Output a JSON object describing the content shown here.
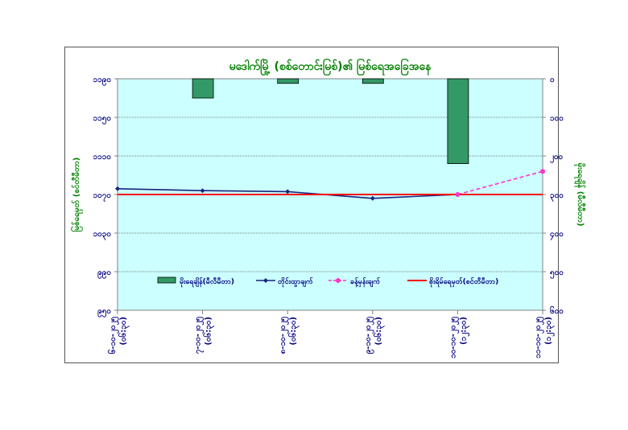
{
  "chart_data": {
    "type": "bar",
    "title": "မဒေါက်မြို့ (စစ်တောင်းမြစ်)၏ မြစ်ရေအခြေအနေ",
    "ylabel_left": "မြစ်ရေမှတ် (စင်တီမီတာ)",
    "ylabel_right": "မိုးရေချိန် (မီလီမီတာ)",
    "left_ticks": [
      "၁၁၉၀",
      "၁၁၅၀",
      "၁၁၁၀",
      "၁၀၇၀",
      "၁၀၃၀",
      "၉၉၀",
      "၉၅၀"
    ],
    "right_ticks": [
      "၀",
      "၁၀၀",
      "၂၀၀",
      "၃၀၀",
      "၄၀၀",
      "၅၀၀",
      "၆၀၀"
    ],
    "ylim_left": [
      950,
      1190
    ],
    "ylim_right": [
      600,
      0
    ],
    "categories": [
      [
        "၆-၁၀-၂၀၂၅",
        "(၀၆:၃၀)"
      ],
      [
        "၇-၁၀-၂၀၂၅",
        "(၀၆:၃၀)"
      ],
      [
        "၈-၁၀-၂၀၂၅",
        "(၀၆:၃၀)"
      ],
      [
        "၉-၁၀-၂၀၂၅",
        "(၀၆:၃၀)"
      ],
      [
        "၁၀-၁၀-၂၀၂၅",
        "(၁၂:၃၀)"
      ],
      [
        "၁၁-၁၀-၂၀၂၅",
        "(၁၂:၃၀)"
      ]
    ],
    "x": [
      "6-10-2025 06:30",
      "7-10-2025 06:30",
      "8-10-2025 06:30",
      "9-10-2025 06:30",
      "10-10-2025 12:30",
      "11-10-2025 12:30"
    ],
    "series": [
      {
        "name": "မိုးရေချိန်(မီလီမီတာ)",
        "type": "bar",
        "axis": "right",
        "color": "#339966",
        "values": [
          null,
          50,
          12,
          12,
          220,
          null
        ]
      },
      {
        "name": "တိုင်းထွာချက်",
        "type": "line",
        "axis": "left",
        "color": "#1a237e",
        "values": [
          1076,
          1074,
          1073,
          1066,
          1070,
          null
        ]
      },
      {
        "name": "ခန့်မှန်းချက်",
        "type": "line",
        "axis": "left",
        "color": "#ff33cc",
        "dashed": true,
        "values": [
          null,
          null,
          null,
          null,
          1070,
          1094
        ]
      },
      {
        "name": "စိုးရိမ်ရေမှတ်(စင်တီမီတာ)",
        "type": "line",
        "axis": "left",
        "color": "#ff0000",
        "values": [
          1070,
          1070,
          1070,
          1070,
          1070,
          1070
        ]
      }
    ],
    "legend_position": "bottom-inside",
    "grid": true,
    "plot_background": "#ccffff",
    "title_color": "#008000",
    "axis_text_color": "#000080",
    "label_text_color": "#008000"
  }
}
